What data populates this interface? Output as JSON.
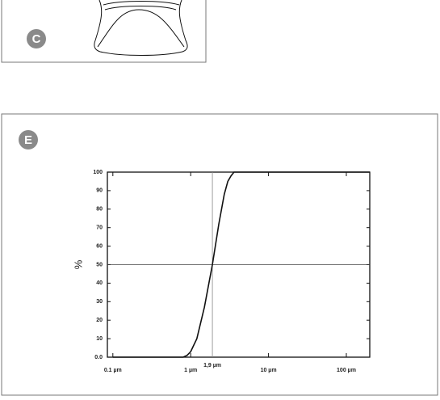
{
  "panels": [
    {
      "label": "C"
    },
    {
      "label": "E"
    }
  ],
  "chart_data": {
    "type": "line",
    "y_label": "%",
    "x": [
      0.1,
      0.5,
      0.8,
      0.9,
      1,
      1.2,
      1.5,
      1.9,
      2.3,
      2.7,
      3.0,
      3.3,
      3.6,
      5,
      10,
      100,
      200
    ],
    "series": [
      {
        "color": "#111111",
        "values": [
          0,
          0,
          0,
          1,
          3,
          10,
          27,
          50,
          72,
          88,
          95,
          98,
          100,
          100,
          100,
          100,
          100
        ]
      }
    ],
    "xscale": "log",
    "xlim": [
      0.085,
      200
    ],
    "xticks": [
      {
        "value": 0.1,
        "label": "0.1 µm"
      },
      {
        "value": 1,
        "label": "1 µm"
      },
      {
        "value": 10,
        "label": "10 µm"
      },
      {
        "value": 100,
        "label": "100 µm"
      }
    ],
    "ylim": [
      0,
      100
    ],
    "yticks": [
      {
        "value": 0,
        "label": "0.0"
      },
      10,
      20,
      30,
      40,
      50,
      60,
      70,
      80,
      90,
      100
    ],
    "vline": {
      "value": 1.9,
      "label": "1,9 µm"
    },
    "hline": 50
  }
}
